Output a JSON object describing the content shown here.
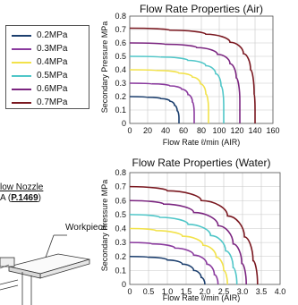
{
  "legend": {
    "items": [
      {
        "label": "0.2MPa",
        "color": "#1c3f6e"
      },
      {
        "label": "0.3MPa",
        "color": "#8a3a9e"
      },
      {
        "label": "0.4MPa",
        "color": "#f2e24a"
      },
      {
        "label": "0.5MPa",
        "color": "#4fc6c8"
      },
      {
        "label": "0.6MPa",
        "color": "#7b2580"
      },
      {
        "label": "0.7MPa",
        "color": "#7a1820"
      }
    ]
  },
  "nozzle": {
    "title": "low Nozzle",
    "ref_prefix": "A (",
    "ref_page": "P.1469",
    "ref_suffix": ")",
    "workpiece_label": "Workpiece"
  },
  "chart_data": [
    {
      "type": "line",
      "title": "Flow Rate Properties (Air)",
      "xlabel": "Flow Rate ℓ/min (AIR)",
      "ylabel": "Secondary Pressure MPa",
      "xlim": [
        0,
        160
      ],
      "ylim": [
        0,
        0.8
      ],
      "xticks": [
        "0",
        "20",
        "40",
        "60",
        "80",
        "100",
        "120",
        "140",
        "160"
      ],
      "yticks": [
        "0",
        "0.1",
        "0.2",
        "0.3",
        "0.4",
        "0.5",
        "0.6",
        "0.7",
        "0.8"
      ],
      "grid": true,
      "series": [
        {
          "name": "0.2MPa",
          "color": "#1c3f6e",
          "x": [
            0,
            20,
            35,
            45,
            50,
            53,
            55,
            55
          ],
          "y": [
            0.2,
            0.195,
            0.185,
            0.165,
            0.135,
            0.095,
            0.04,
            0
          ]
        },
        {
          "name": "0.3MPa",
          "color": "#8a3a9e",
          "x": [
            0,
            25,
            45,
            58,
            65,
            70,
            72,
            72
          ],
          "y": [
            0.3,
            0.295,
            0.28,
            0.255,
            0.215,
            0.16,
            0.08,
            0
          ]
        },
        {
          "name": "0.4MPa",
          "color": "#f2e24a",
          "x": [
            0,
            30,
            55,
            70,
            79,
            85,
            88,
            88
          ],
          "y": [
            0.4,
            0.395,
            0.375,
            0.345,
            0.295,
            0.22,
            0.11,
            0
          ]
        },
        {
          "name": "0.5MPa",
          "color": "#4fc6c8",
          "x": [
            0,
            35,
            65,
            85,
            96,
            102,
            105,
            105
          ],
          "y": [
            0.5,
            0.495,
            0.47,
            0.43,
            0.37,
            0.28,
            0.14,
            0
          ]
        },
        {
          "name": "0.6MPa",
          "color": "#7b2580",
          "x": [
            0,
            40,
            75,
            98,
            112,
            119,
            123,
            123
          ],
          "y": [
            0.6,
            0.59,
            0.565,
            0.515,
            0.445,
            0.34,
            0.17,
            0
          ]
        },
        {
          "name": "0.7MPa",
          "color": "#7a1820",
          "x": [
            0,
            45,
            85,
            112,
            127,
            135,
            139,
            140,
            140
          ],
          "y": [
            0.71,
            0.695,
            0.665,
            0.605,
            0.52,
            0.4,
            0.22,
            0.1,
            0
          ]
        }
      ]
    },
    {
      "type": "line",
      "title": "Flow Rate Properties (Water)",
      "xlabel": "Flow Rate ℓ/min (AIR)",
      "ylabel": "Secondary Pressure MPa",
      "xlim": [
        0,
        4.0
      ],
      "ylim": [
        0,
        0.8
      ],
      "xticks": [
        "0",
        "0.5",
        "1.0",
        "1.5",
        "2.0",
        "2.5",
        "3.0",
        "3.5",
        "4.0"
      ],
      "yticks": [
        "0",
        "0.1",
        "0.2",
        "0.3",
        "0.4",
        "0.5",
        "0.6",
        "0.7",
        "0.8"
      ],
      "grid": true,
      "series": [
        {
          "name": "0.2MPa",
          "color": "#1c3f6e",
          "x": [
            0,
            0.5,
            1.0,
            1.4,
            1.7,
            1.9,
            2.0
          ],
          "y": [
            0.2,
            0.195,
            0.175,
            0.145,
            0.1,
            0.05,
            0
          ]
        },
        {
          "name": "0.3MPa",
          "color": "#8a3a9e",
          "x": [
            0,
            0.6,
            1.2,
            1.7,
            2.05,
            2.25,
            2.35
          ],
          "y": [
            0.3,
            0.29,
            0.26,
            0.21,
            0.145,
            0.07,
            0
          ]
        },
        {
          "name": "0.4MPa",
          "color": "#f2e24a",
          "x": [
            0,
            0.7,
            1.4,
            1.95,
            2.3,
            2.5,
            2.6
          ],
          "y": [
            0.4,
            0.385,
            0.345,
            0.28,
            0.195,
            0.1,
            0
          ]
        },
        {
          "name": "0.5MPa",
          "color": "#4fc6c8",
          "x": [
            0,
            0.8,
            1.55,
            2.15,
            2.55,
            2.75,
            2.85
          ],
          "y": [
            0.5,
            0.48,
            0.43,
            0.35,
            0.24,
            0.12,
            0
          ]
        },
        {
          "name": "0.6MPa",
          "color": "#7b2580",
          "x": [
            0,
            0.9,
            1.7,
            2.35,
            2.75,
            2.98,
            3.1
          ],
          "y": [
            0.6,
            0.575,
            0.515,
            0.42,
            0.29,
            0.15,
            0
          ]
        },
        {
          "name": "0.7MPa",
          "color": "#7a1820",
          "x": [
            0,
            1.0,
            1.9,
            2.6,
            3.05,
            3.28,
            3.4
          ],
          "y": [
            0.7,
            0.67,
            0.6,
            0.49,
            0.34,
            0.17,
            0
          ]
        }
      ]
    }
  ]
}
